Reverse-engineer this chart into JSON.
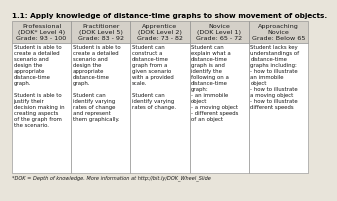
{
  "title": "1.1: Apply knowledge of distance-time graphs to show movement of objects.",
  "columns": [
    "Professional\n(DOK* Level 4)\nGrade: 93 - 100",
    "Practitioner\n(DOK Level 5)\nGrade: 83 - 92",
    "Apprentice\n(DOK Level 2)\nGrade: 73 - 82",
    "Novice\n(DOK Level 1)\nGrade: 65 - 72",
    "Approaching\nNovice\nGrade: Below 65"
  ],
  "cells": [
    "Student is able to\ncreate a detailed\nscenario and\ndesign the\nappropriate\ndistance-time\ngraph.\n\nStudent is able to\njustify their\ndecision making in\ncreating aspects\nof the graph from\nthe scenario.",
    "Student is able to\ncreate a detailed\nscenario and\ndesign the\nappropriate\ndistance-time\ngraph.\n\nStudent can\nidentify varying\nrates of change\nand represent\nthem graphically.",
    "Student can\nconstruct a\ndistance-time\ngraph from a\ngiven scenario\nwith a provided\nscale.\n\nStudent can\nidentify varying\nrates of change.",
    "Student can\nexplain what a\ndistance-time\ngraph is and\nidentify the\nfollowing on a\ndistance-time\ngraph:\n- an immobile\nobject\n- a moving object\n- different speeds\nof an object",
    "Student lacks key\nunderstandings of\ndistance-time\ngraphs including:\n- how to illustrate\nan immobile\nobject\n- how to illustrate\na moving object\n- how to illustrate\ndifferent speeds"
  ],
  "footnote": "*DOK = Depth of knowledge. More information at http://bit.ly/DOK_Wheel_Slide",
  "header_bg": "#d4d0c8",
  "cell_bg": "#ffffff",
  "border_color": "#888888",
  "title_color": "#000000",
  "text_color": "#1a1a1a",
  "title_fontsize": 5.2,
  "header_fontsize": 4.6,
  "cell_fontsize": 3.9,
  "footnote_fontsize": 3.6,
  "fig_bg": "#e8e4da"
}
